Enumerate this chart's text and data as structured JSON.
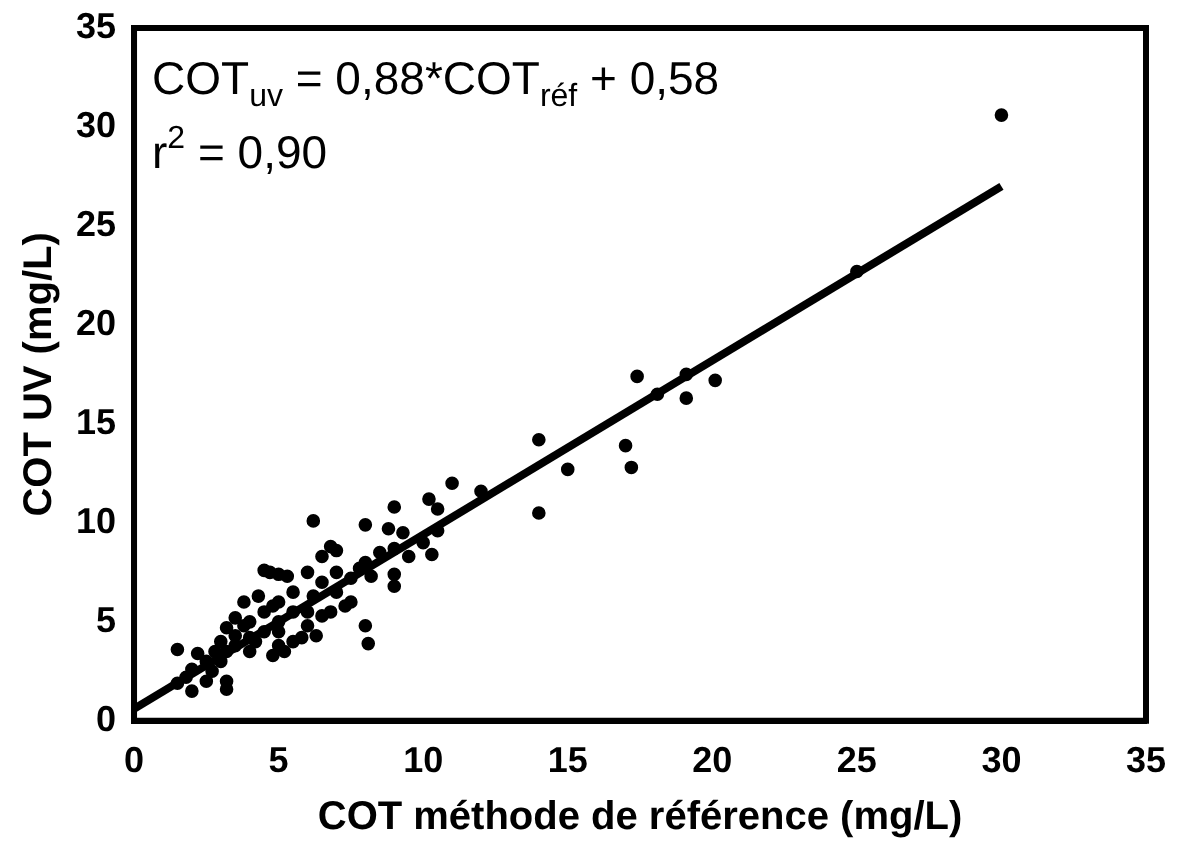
{
  "chart_data": {
    "type": "scatter",
    "xlabel": "COT méthode de référence (mg/L)",
    "ylabel": "COT UV (mg/L)",
    "xlim": [
      0,
      35
    ],
    "ylim": [
      0,
      35
    ],
    "xticks": [
      0,
      5,
      10,
      15,
      20,
      25,
      30,
      35
    ],
    "yticks": [
      0,
      5,
      10,
      15,
      20,
      25,
      30,
      35
    ],
    "grid": false,
    "annotations": [
      "COT$_{uv}$ = 0,88*COT$_{réf}$ + 0,58",
      "r$^{2}$ = 0,90"
    ],
    "series": [
      {
        "marker": "circle",
        "color": "#000000",
        "x": [
          30,
          25,
          20.1,
          19.1,
          19.1,
          18.1,
          17.4,
          17.2,
          17,
          15,
          14,
          14,
          12,
          11,
          10.5,
          10.2,
          9,
          8,
          6.2,
          10.5,
          10,
          10.3,
          9.5,
          9,
          8.8,
          9.3,
          8.5,
          8,
          7.8,
          8.2,
          9,
          9,
          8,
          8.1,
          7.5,
          7.5,
          7,
          7,
          6.8,
          6.5,
          6.5,
          6.2,
          6,
          6,
          5.8,
          5.5,
          5.5,
          5.3,
          5,
          4.7,
          4.5,
          5,
          5,
          5,
          5,
          4.8,
          4.5,
          4.5,
          4.3,
          4.2,
          4,
          4,
          4,
          3.8,
          3.5,
          3.5,
          3.5,
          3.2,
          3.2,
          3,
          3,
          3.2,
          3.2,
          2.8,
          2.7,
          2.5,
          2.5,
          2.2,
          2,
          2,
          1.8,
          1.5,
          1.5,
          6,
          6.5,
          7,
          5.5,
          4.8,
          3.8,
          5.2,
          6.8,
          7.3,
          6.3
        ],
        "values": [
          30.6,
          22.7,
          17.2,
          17.5,
          16.3,
          16.5,
          17.4,
          12.8,
          13.9,
          12.7,
          14.2,
          10.5,
          11.6,
          12,
          10.7,
          11.2,
          10.8,
          9.9,
          10.1,
          9.6,
          9,
          8.4,
          8.3,
          8.7,
          9.7,
          9.5,
          8.5,
          8,
          7.7,
          7.3,
          7.4,
          6.8,
          4.8,
          3.9,
          7.2,
          6,
          7.5,
          8.6,
          8.8,
          8.3,
          7,
          6.3,
          7.5,
          5.5,
          4.2,
          5.5,
          6.5,
          7.3,
          7.4,
          7.5,
          7.6,
          6,
          5,
          4.5,
          3.8,
          3.3,
          4.5,
          5.5,
          6.3,
          4,
          5,
          4.2,
          3.5,
          6,
          5.2,
          4.3,
          3.8,
          4.7,
          3.5,
          4,
          3,
          2,
          1.6,
          3.5,
          2.5,
          3,
          2,
          3.4,
          2.6,
          1.5,
          2.2,
          3.6,
          1.9,
          4.8,
          5.3,
          6.5,
          4,
          5.8,
          4.8,
          3.5,
          5.5,
          5.8,
          4.3
        ]
      },
      {
        "type": "line",
        "marker": "none",
        "color": "#000000",
        "x": [
          0,
          30
        ],
        "values": [
          0.6,
          27
        ]
      }
    ]
  }
}
